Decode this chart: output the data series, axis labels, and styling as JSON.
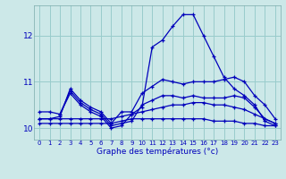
{
  "xlabel": "Graphe des températures (°c)",
  "background_color": "#cce8e8",
  "line_color": "#0000bb",
  "grid_color": "#99cccc",
  "xlim": [
    -0.5,
    23.5
  ],
  "ylim": [
    9.75,
    12.65
  ],
  "yticks": [
    10,
    11,
    12
  ],
  "xticks": [
    0,
    1,
    2,
    3,
    4,
    5,
    6,
    7,
    8,
    9,
    10,
    11,
    12,
    13,
    14,
    15,
    16,
    17,
    18,
    19,
    20,
    21,
    22,
    23
  ],
  "lines": [
    {
      "x": [
        0,
        1,
        2,
        3,
        4,
        5,
        6,
        7,
        8,
        9,
        10,
        11,
        12,
        13,
        14,
        15,
        16,
        17,
        18,
        19,
        20,
        21,
        22,
        23
      ],
      "y": [
        10.1,
        10.1,
        10.1,
        10.1,
        10.1,
        10.1,
        10.1,
        10.1,
        10.15,
        10.2,
        10.2,
        10.2,
        10.2,
        10.2,
        10.2,
        10.2,
        10.2,
        10.15,
        10.15,
        10.15,
        10.1,
        10.1,
        10.05,
        10.05
      ]
    },
    {
      "x": [
        0,
        1,
        2,
        3,
        4,
        5,
        6,
        7,
        8,
        9,
        10,
        11,
        12,
        13,
        14,
        15,
        16,
        17,
        18,
        19,
        20,
        21,
        22,
        23
      ],
      "y": [
        10.2,
        10.2,
        10.2,
        10.2,
        10.2,
        10.2,
        10.2,
        10.2,
        10.25,
        10.3,
        10.35,
        10.4,
        10.45,
        10.5,
        10.5,
        10.55,
        10.55,
        10.5,
        10.5,
        10.45,
        10.4,
        10.3,
        10.2,
        10.1
      ]
    },
    {
      "x": [
        0,
        1,
        2,
        3,
        4,
        5,
        6,
        7,
        8,
        9,
        10,
        11,
        12,
        13,
        14,
        15,
        16,
        17,
        18,
        19,
        20,
        21,
        22,
        23
      ],
      "y": [
        10.35,
        10.35,
        10.3,
        10.8,
        10.55,
        10.4,
        10.3,
        10.05,
        10.1,
        10.15,
        10.5,
        10.6,
        10.7,
        10.7,
        10.65,
        10.7,
        10.65,
        10.65,
        10.65,
        10.7,
        10.65,
        10.45,
        10.2,
        10.1
      ]
    },
    {
      "x": [
        0,
        1,
        2,
        3,
        4,
        5,
        6,
        7,
        8,
        9,
        10,
        11,
        12,
        13,
        14,
        15,
        16,
        17,
        18,
        19,
        20,
        21,
        22,
        23
      ],
      "y": [
        10.2,
        10.2,
        10.25,
        10.85,
        10.6,
        10.45,
        10.35,
        10.1,
        10.35,
        10.35,
        10.75,
        10.9,
        11.05,
        11.0,
        10.95,
        11.0,
        11.0,
        11.0,
        11.05,
        11.1,
        11.0,
        10.7,
        10.5,
        10.2
      ]
    },
    {
      "x": [
        2,
        3,
        4,
        5,
        6,
        7,
        8,
        9,
        10,
        11,
        12,
        13,
        14,
        15,
        16,
        17,
        18,
        19,
        20,
        21,
        22,
        23
      ],
      "y": [
        10.3,
        10.75,
        10.5,
        10.35,
        10.25,
        10.0,
        10.05,
        10.3,
        10.45,
        11.75,
        11.9,
        12.2,
        12.45,
        12.45,
        12.0,
        11.55,
        11.1,
        10.85,
        10.7,
        10.5,
        10.15,
        10.05
      ]
    }
  ]
}
